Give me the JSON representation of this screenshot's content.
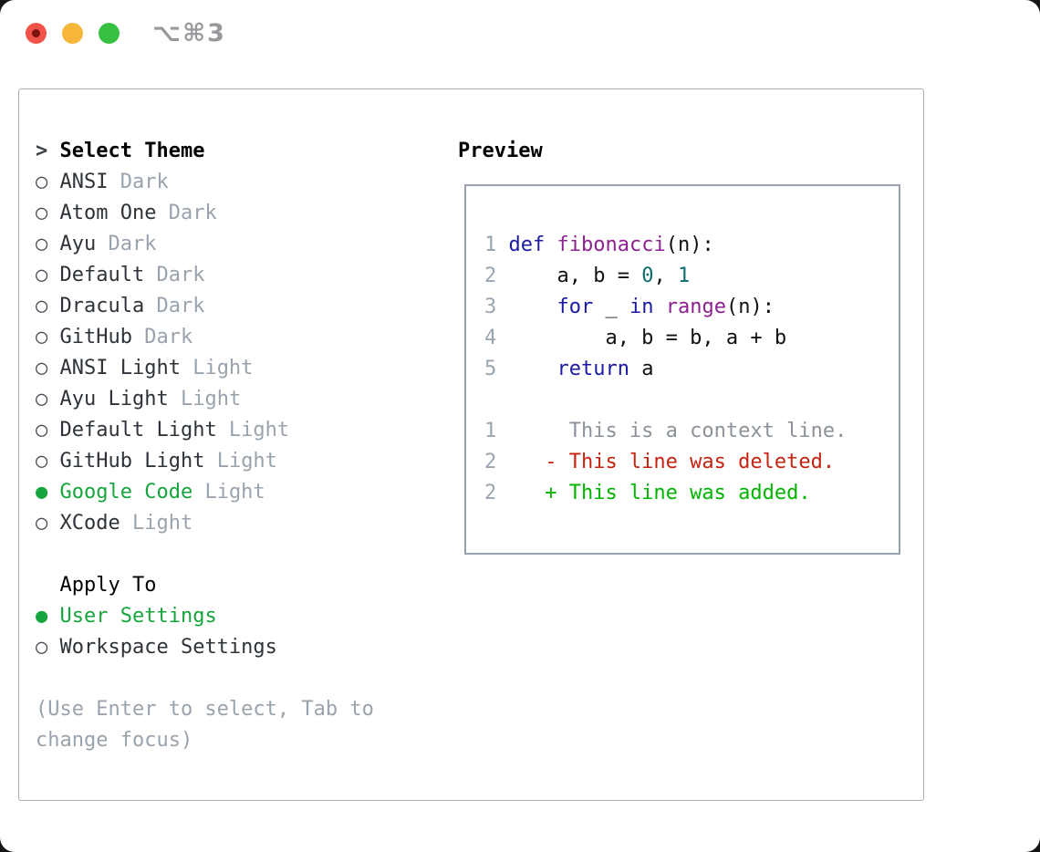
{
  "window": {
    "title": "⌥⌘3",
    "traffic_lights": [
      {
        "name": "close",
        "color": "#f1524a"
      },
      {
        "name": "minimize",
        "color": "#f5b63a"
      },
      {
        "name": "maximize",
        "color": "#36c03f"
      }
    ]
  },
  "theme_panel": {
    "header": {
      "cursor": ">",
      "label": "Select Theme"
    },
    "bullets": {
      "selected": "●",
      "unselected": "○"
    },
    "themes": [
      {
        "name": "ANSI",
        "tag": "Dark",
        "selected": false
      },
      {
        "name": "Atom One",
        "tag": "Dark",
        "selected": false
      },
      {
        "name": "Ayu",
        "tag": "Dark",
        "selected": false
      },
      {
        "name": "Default",
        "tag": "Dark",
        "selected": false
      },
      {
        "name": "Dracula",
        "tag": "Dark",
        "selected": false
      },
      {
        "name": "GitHub",
        "tag": "Dark",
        "selected": false
      },
      {
        "name": "ANSI Light",
        "tag": "Light",
        "selected": false
      },
      {
        "name": "Ayu Light",
        "tag": "Light",
        "selected": false
      },
      {
        "name": "Default Light",
        "tag": "Light",
        "selected": false
      },
      {
        "name": "GitHub Light",
        "tag": "Light",
        "selected": false
      },
      {
        "name": "Google Code",
        "tag": "Light",
        "selected": true
      },
      {
        "name": "XCode",
        "tag": "Light",
        "selected": false
      }
    ],
    "apply_to": {
      "label": "Apply To",
      "options": [
        {
          "name": "User Settings",
          "selected": true
        },
        {
          "name": "Workspace Settings",
          "selected": false
        }
      ]
    },
    "help_text": "(Use Enter to select, Tab to change focus)"
  },
  "preview": {
    "label": "Preview",
    "lines": [
      {
        "num": "1",
        "tokens": [
          {
            "c": "kwd",
            "t": "def"
          },
          {
            "c": "pln",
            "t": " "
          },
          {
            "c": "fn",
            "t": "fibonacci"
          },
          {
            "c": "pln",
            "t": "(n):"
          }
        ]
      },
      {
        "num": "2",
        "tokens": [
          {
            "c": "pln",
            "t": "    a, b = "
          },
          {
            "c": "num",
            "t": "0"
          },
          {
            "c": "pln",
            "t": ", "
          },
          {
            "c": "num",
            "t": "1"
          }
        ]
      },
      {
        "num": "3",
        "tokens": [
          {
            "c": "pln",
            "t": "    "
          },
          {
            "c": "kwd",
            "t": "for"
          },
          {
            "c": "pln",
            "t": " _ "
          },
          {
            "c": "kwd",
            "t": "in"
          },
          {
            "c": "pln",
            "t": " "
          },
          {
            "c": "fn",
            "t": "range"
          },
          {
            "c": "pln",
            "t": "(n):"
          }
        ]
      },
      {
        "num": "4",
        "tokens": [
          {
            "c": "pln",
            "t": "        a, b = b, a + b"
          }
        ]
      },
      {
        "num": "5",
        "tokens": [
          {
            "c": "pln",
            "t": "    "
          },
          {
            "c": "kwd",
            "t": "return"
          },
          {
            "c": "pln",
            "t": " a"
          }
        ]
      },
      {
        "num": "",
        "tokens": []
      },
      {
        "num": "1",
        "tokens": [
          {
            "c": "ctx",
            "t": "     This is a context line."
          }
        ]
      },
      {
        "num": "2",
        "tokens": [
          {
            "c": "del",
            "t": "   - This line was deleted."
          }
        ]
      },
      {
        "num": "2",
        "tokens": [
          {
            "c": "add",
            "t": "   + This line was added."
          }
        ]
      }
    ]
  },
  "colors": {
    "accent-green": "#16a53c",
    "keyword-blue": "#1a1aa6",
    "function-purple": "#8e2190",
    "number-teal": "#0d6d6d",
    "plain-code": "#111111",
    "context-gray": "#8b9299",
    "deleted-red": "#c5220f",
    "added-green": "#00b400",
    "line-number-gray": "#9aa5b2",
    "muted-gray": "#9aa3ad",
    "item-text": "#2d3339",
    "panel-border": "#a6adb6",
    "preview-border": "#9aa3ad",
    "traffic-red": "#f1524a",
    "traffic-yellow": "#f5b63a",
    "traffic-green": "#36c03f"
  }
}
